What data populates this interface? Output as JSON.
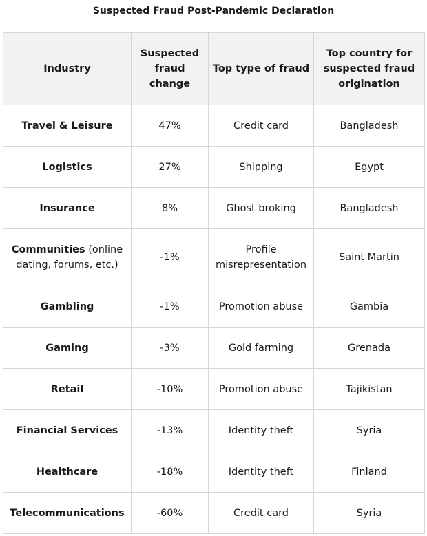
{
  "title": "Suspected Fraud Post-Pandemic Declaration",
  "chart_data": {
    "type": "table",
    "title": "Suspected Fraud Post-Pandemic Declaration",
    "columns": [
      "Industry",
      "Suspected fraud change",
      "Top type of fraud",
      "Top country for suspected fraud origination"
    ],
    "rows": [
      {
        "industry": "Travel & Leisure",
        "note": "",
        "change": "47%",
        "fraud_type": "Credit card",
        "country": "Bangladesh"
      },
      {
        "industry": "Logistics",
        "note": "",
        "change": "27%",
        "fraud_type": "Shipping",
        "country": "Egypt"
      },
      {
        "industry": "Insurance",
        "note": "",
        "change": "8%",
        "fraud_type": "Ghost broking",
        "country": "Bangladesh"
      },
      {
        "industry": "Communities",
        "note": " (online dating, forums, etc.)",
        "change": "-1%",
        "fraud_type": "Profile misrepresentation",
        "country": "Saint Martin"
      },
      {
        "industry": "Gambling",
        "note": "",
        "change": "-1%",
        "fraud_type": "Promotion abuse",
        "country": "Gambia"
      },
      {
        "industry": "Gaming",
        "note": "",
        "change": "-3%",
        "fraud_type": "Gold farming",
        "country": "Grenada"
      },
      {
        "industry": "Retail",
        "note": "",
        "change": "-10%",
        "fraud_type": "Promotion abuse",
        "country": "Tajikistan"
      },
      {
        "industry": "Financial Services",
        "note": "",
        "change": "-13%",
        "fraud_type": "Identity theft",
        "country": "Syria"
      },
      {
        "industry": "Healthcare",
        "note": "",
        "change": "-18%",
        "fraud_type": "Identity theft",
        "country": "Finland"
      },
      {
        "industry": "Telecommunications",
        "note": "",
        "change": "-60%",
        "fraud_type": "Credit card",
        "country": "Syria"
      }
    ]
  }
}
